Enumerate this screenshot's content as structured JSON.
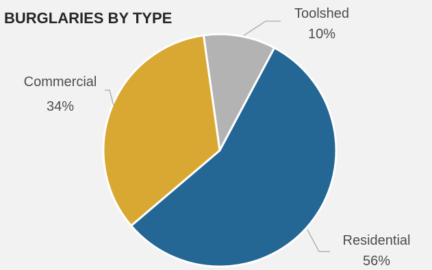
{
  "chart_data": {
    "type": "pie",
    "title": "BURGLARIES BY TYPE",
    "slices": [
      {
        "label": "Toolshed",
        "value": 10,
        "display": "10%",
        "color": "#b3b3b3"
      },
      {
        "label": "Residential",
        "value": 56,
        "display": "56%",
        "color": "#246794"
      },
      {
        "label": "Commercial",
        "value": 34,
        "display": "34%",
        "color": "#d9a832"
      }
    ],
    "legend": "none",
    "data_labels": "outside-with-leader-lines"
  }
}
